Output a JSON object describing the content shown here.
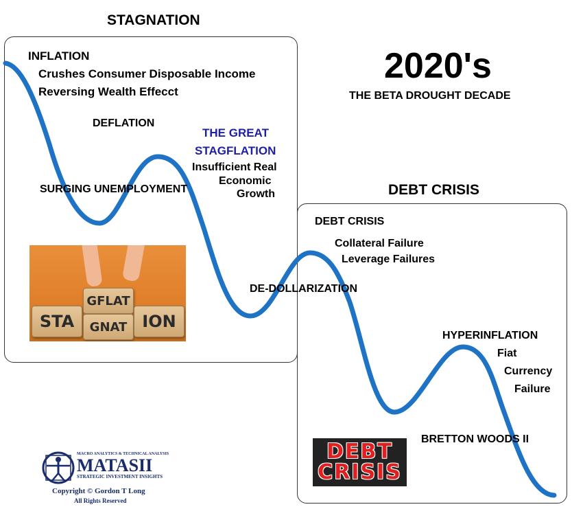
{
  "headline": {
    "decade": "2020's",
    "subtitle": "THE BETA DROUGHT DECADE"
  },
  "stagnation_panel": {
    "title": "STAGNATION",
    "inflation": "INFLATION",
    "inflation_note_1": "Crushes Consumer Disposable Income",
    "inflation_note_2": "Reversing Wealth Effecct",
    "deflation": "DEFLATION",
    "unemployment": "SURGING UNEMPLOYMENT",
    "stagflation_1": "THE GREAT",
    "stagflation_2": "STAGFLATION",
    "stagflation_note_1": "Insufficient Real",
    "stagflation_note_2": "Economic",
    "stagflation_note_3": "Growth",
    "image": {
      "blocks": [
        "STA",
        "GFLAT",
        "GNAT",
        "ION"
      ]
    }
  },
  "dedollarization": "DE-DOLLARIZATION",
  "debt_panel": {
    "title": "DEBT CRISIS",
    "debt_crisis": "DEBT CRISIS",
    "collateral": "Collateral Failure",
    "leverage": "Leverage Failures",
    "hyperinflation": "HYPERINFLATION",
    "hyper_note_1": "Fiat",
    "hyper_note_2": "Currency",
    "hyper_note_3": "Failure",
    "bretton_woods": "BRETTON WOODS II",
    "badge": {
      "line_1": "DEBT",
      "line_2": "CRISIS"
    }
  },
  "logo": {
    "top": "MACRO ANALYTICS & TECHNICAL ANALYSIS",
    "main": "MATASII",
    "sub": "STRATEGIC INVESTMENT INSIGHTS",
    "copyright": "Copyright © Gordon T Long",
    "rights": "All Rights Reserved"
  },
  "colors": {
    "curve": "#1f73c4",
    "stagflation_text": "#1f1fa3",
    "badge_text": "#e02020",
    "logo": "#1a2c6b"
  }
}
